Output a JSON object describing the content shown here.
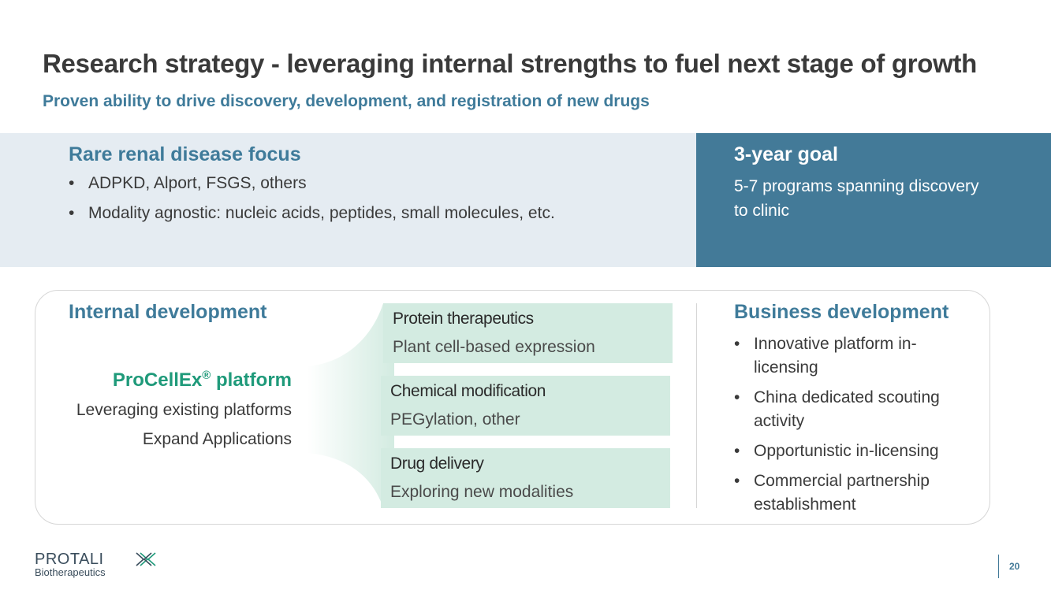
{
  "header": {
    "title": "Research strategy - leveraging internal strengths to fuel next stage of growth",
    "subtitle": "Proven ability to drive discovery, development, and registration of new drugs"
  },
  "focus": {
    "heading": "Rare renal disease focus",
    "bullets": [
      "ADPKD, Alport, FSGS, others",
      "Modality agnostic: nucleic acids, peptides, small molecules, etc."
    ]
  },
  "goal": {
    "heading": "3-year goal",
    "text": "5-7 programs spanning discovery to clinic"
  },
  "internal": {
    "heading": "Internal development",
    "platform_name": "ProCellEx",
    "platform_mark": "®",
    "platform_suffix": " platform",
    "lines": [
      "Leveraging existing platforms",
      "Expand Applications"
    ]
  },
  "cards": [
    {
      "title": "Protein therapeutics",
      "desc": "Plant cell-based expression"
    },
    {
      "title": "Chemical modification",
      "desc": "PEGylation, other"
    },
    {
      "title": "Drug delivery",
      "desc": "Exploring new modalities"
    }
  ],
  "business": {
    "heading": "Business development",
    "bullets": [
      "Innovative platform in-licensing",
      "China dedicated scouting activity",
      "Opportunistic in-licensing",
      "Commercial partnership establishment"
    ]
  },
  "footer": {
    "logo_word": "PROTALI",
    "logo_sub": "Biotherapeutics",
    "page_number": "20"
  },
  "colors": {
    "accent_blue": "#3f7b9a",
    "band_dark": "#437a98",
    "band_light": "#e5ecf2",
    "card_green": "#d3ebe1",
    "platform_green": "#1f9a7a"
  }
}
